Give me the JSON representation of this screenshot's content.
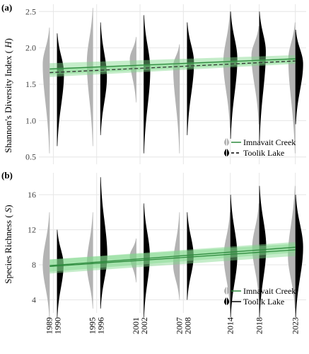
{
  "figure": {
    "colors": {
      "imnavait_violin": "#b3b3b3",
      "toolik_violin": "#000000",
      "fit_line": "#2e8b3e",
      "ci_band": "#7fd88a",
      "grid": "#e6e6e6",
      "panel_bg": "#ffffff"
    }
  },
  "chart_data": [
    {
      "type": "violin",
      "panel_label": "(a)",
      "ylabel": "Shannon's Diversity Index (H)",
      "ylabel_italic_symbol": "H",
      "ylim": [
        0.4,
        2.6
      ],
      "yticks": [
        0.5,
        1.0,
        1.5,
        2.0,
        2.5
      ],
      "ytick_labels": [
        "0.5",
        "1.0",
        "1.5",
        "2.0",
        "2.5"
      ],
      "grid": true,
      "legend_position": "bottom-right",
      "legend": [
        {
          "name": "Imnavait Creek",
          "marker": "grey-violin",
          "line": "solid"
        },
        {
          "name": "Toolik Lake",
          "marker": "black-violin",
          "line": "dashed"
        }
      ],
      "series": [
        {
          "name": "Imnavait Creek",
          "side": "left",
          "groups": [
            {
              "year": 1989,
              "min": 0.55,
              "max": 2.28,
              "mode": 1.78,
              "width": 0.9
            },
            {
              "year": 1995,
              "min": 0.65,
              "max": 2.55,
              "mode": 1.8,
              "width": 0.8
            },
            {
              "year": 2001,
              "min": 1.25,
              "max": 2.15,
              "mode": 1.85,
              "width": 0.85
            },
            {
              "year": 2007,
              "min": 0.55,
              "max": 2.05,
              "mode": 1.75,
              "width": 0.85
            },
            {
              "year": 2014,
              "min": 0.9,
              "max": 2.5,
              "mode": 1.8,
              "width": 0.9
            },
            {
              "year": 2018,
              "min": 0.95,
              "max": 2.3,
              "mode": 1.9,
              "width": 1.0
            },
            {
              "year": 2023,
              "min": 0.55,
              "max": 2.35,
              "mode": 1.85,
              "width": 0.9
            }
          ],
          "fit": {
            "y_start": 1.71,
            "y_end": 1.85,
            "ci_start": [
              1.63,
              1.79
            ],
            "ci_end": [
              1.8,
              1.9
            ]
          }
        },
        {
          "name": "Toolik Lake",
          "side": "right",
          "groups": [
            {
              "year": 1990,
              "min": 0.65,
              "max": 2.2,
              "mode": 1.65,
              "width": 0.9
            },
            {
              "year": 1996,
              "min": 0.8,
              "max": 2.35,
              "mode": 1.6,
              "width": 0.85
            },
            {
              "year": 2002,
              "min": 0.55,
              "max": 2.45,
              "mode": 1.7,
              "width": 0.85
            },
            {
              "year": 2008,
              "min": 0.8,
              "max": 2.35,
              "mode": 1.8,
              "width": 0.9
            },
            {
              "year": 2014,
              "min": 0.75,
              "max": 2.5,
              "mode": 1.85,
              "width": 0.9
            },
            {
              "year": 2018,
              "min": 0.7,
              "max": 2.5,
              "mode": 1.95,
              "width": 0.85
            },
            {
              "year": 2023,
              "min": 0.95,
              "max": 2.25,
              "mode": 1.78,
              "width": 1.0
            }
          ],
          "fit": {
            "y_start": 1.66,
            "y_end": 1.82,
            "ci_start": [
              1.6,
              1.72
            ],
            "ci_end": [
              1.78,
              1.86
            ]
          }
        }
      ]
    },
    {
      "type": "violin",
      "panel_label": "(b)",
      "ylabel": "Species Richness (S)",
      "ylabel_italic_symbol": "S",
      "ylim": [
        2.5,
        18.5
      ],
      "yticks": [
        4,
        8,
        12,
        16
      ],
      "ytick_labels": [
        "4",
        "8",
        "12",
        "16"
      ],
      "grid": true,
      "legend_position": "bottom-right",
      "legend": [
        {
          "name": "Imnavait Creek",
          "marker": "grey-violin",
          "line": "solid"
        },
        {
          "name": "Toolik Lake",
          "marker": "black-violin",
          "line": "solid"
        }
      ],
      "series": [
        {
          "name": "Imnavait Creek",
          "side": "left",
          "groups": [
            {
              "year": 1989,
              "min": 2,
              "max": 14,
              "mode": 8,
              "width": 0.9
            },
            {
              "year": 1995,
              "min": 3,
              "max": 14,
              "mode": 8,
              "width": 0.8
            },
            {
              "year": 2001,
              "min": 6,
              "max": 11,
              "mode": 9,
              "width": 0.85
            },
            {
              "year": 2007,
              "min": 4,
              "max": 14,
              "mode": 8,
              "width": 0.85
            },
            {
              "year": 2014,
              "min": 3,
              "max": 14,
              "mode": 9,
              "width": 0.85
            },
            {
              "year": 2018,
              "min": 4,
              "max": 15,
              "mode": 10,
              "width": 0.9
            },
            {
              "year": 2023,
              "min": 3,
              "max": 17,
              "mode": 9,
              "width": 0.95
            }
          ],
          "fit": {
            "y_start": 7.9,
            "y_end": 10.0,
            "ci_start": [
              7.2,
              8.6
            ],
            "ci_end": [
              9.4,
              10.6
            ]
          }
        },
        {
          "name": "Toolik Lake",
          "side": "right",
          "groups": [
            {
              "year": 1990,
              "min": 2,
              "max": 12,
              "mode": 8,
              "width": 0.85
            },
            {
              "year": 1996,
              "min": 3,
              "max": 18,
              "mode": 9,
              "width": 0.9
            },
            {
              "year": 2002,
              "min": 2,
              "max": 15,
              "mode": 9,
              "width": 0.8
            },
            {
              "year": 2008,
              "min": 4,
              "max": 14,
              "mode": 9,
              "width": 0.85
            },
            {
              "year": 2014,
              "min": 2,
              "max": 16,
              "mode": 9,
              "width": 0.9
            },
            {
              "year": 2018,
              "min": 2,
              "max": 17,
              "mode": 10,
              "width": 0.9
            },
            {
              "year": 2023,
              "min": 2,
              "max": 16,
              "mode": 10,
              "width": 1.0
            }
          ],
          "fit": {
            "y_start": 7.8,
            "y_end": 9.7,
            "ci_start": [
              7.0,
              8.6
            ],
            "ci_end": [
              9.0,
              10.4
            ]
          }
        }
      ]
    }
  ],
  "x_axis": {
    "xlim": [
      1987.5,
      2024.5
    ],
    "year_labels": [
      {
        "pair": [
          "1989",
          "1990"
        ],
        "year": 1989.5
      },
      {
        "pair": [
          "1995",
          "1996"
        ],
        "year": 1995.5
      },
      {
        "pair": [
          "2001",
          "2002"
        ],
        "year": 2001.5
      },
      {
        "pair": [
          "2007",
          "2008"
        ],
        "year": 2007.5
      },
      {
        "pair": [
          "2014"
        ],
        "year": 2014
      },
      {
        "pair": [
          "2018"
        ],
        "year": 2018
      },
      {
        "pair": [
          "2023"
        ],
        "year": 2023
      }
    ]
  }
}
